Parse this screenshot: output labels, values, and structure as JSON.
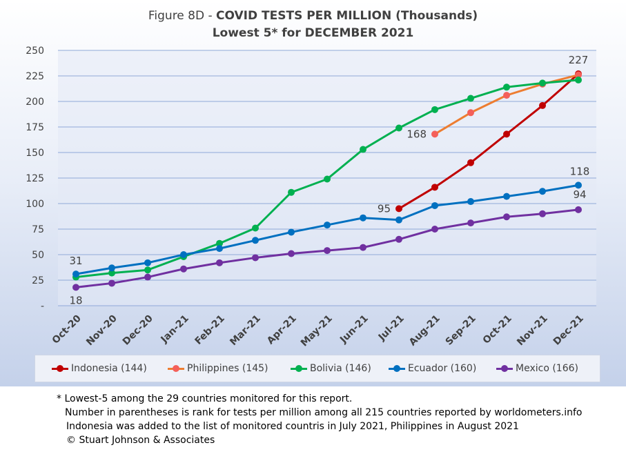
{
  "title": {
    "prefix": "Figure 8D - ",
    "main": "COVID TESTS PER MILLION (Thousands)",
    "subtitle": "Lowest 5* for DECEMBER 2021"
  },
  "chart_data": {
    "type": "line",
    "categories": [
      "Oct-20",
      "Nov-20",
      "Dec-20",
      "Jan-21",
      "Feb-21",
      "Mar-21",
      "Apr-21",
      "May-21",
      "Jun-21",
      "Jul-21",
      "Aug-21",
      "Sep-21",
      "Oct-21",
      "Nov-21",
      "Dec-21"
    ],
    "y_ticks": [
      "250",
      "225",
      "200",
      "175",
      "150",
      "125",
      "100",
      "75",
      "50",
      "25",
      "-"
    ],
    "ylim": [
      0,
      250
    ],
    "grid": true,
    "legend_position": "bottom",
    "series": [
      {
        "name": "Indonesia (144)",
        "color": "#c00000",
        "values": [
          null,
          null,
          null,
          null,
          null,
          null,
          null,
          null,
          null,
          95,
          116,
          140,
          168,
          196,
          227
        ]
      },
      {
        "name": "Philippines (145)",
        "color": "#ed7d31",
        "dot_color": "#f4605a",
        "values": [
          null,
          null,
          null,
          null,
          null,
          null,
          null,
          null,
          null,
          null,
          168,
          189,
          206,
          217,
          226
        ]
      },
      {
        "name": "Bolivia (146)",
        "color": "#00b050",
        "values": [
          28,
          32,
          35,
          48,
          61,
          76,
          111,
          124,
          153,
          174,
          192,
          203,
          214,
          218,
          221
        ]
      },
      {
        "name": "Ecuador (160)",
        "color": "#0070c0",
        "values": [
          31,
          37,
          42,
          50,
          56,
          64,
          72,
          79,
          86,
          84,
          98,
          102,
          107,
          112,
          118
        ]
      },
      {
        "name": "Mexico (166)",
        "color": "#7030a0",
        "values": [
          18,
          22,
          28,
          36,
          42,
          47,
          51,
          54,
          57,
          65,
          75,
          81,
          87,
          90,
          94
        ]
      }
    ],
    "annotations": [
      {
        "text": "227",
        "series": "Indonesia (144)",
        "category": "Dec-21"
      },
      {
        "text": "168",
        "series": "Philippines (145)",
        "category": "Aug-21"
      },
      {
        "text": "95",
        "series": "Indonesia (144)",
        "category": "Jul-21"
      },
      {
        "text": "118",
        "series": "Ecuador (160)",
        "category": "Dec-21"
      },
      {
        "text": "94",
        "series": "Mexico (166)",
        "category": "Dec-21"
      },
      {
        "text": "31",
        "series": "Ecuador (160)",
        "category": "Oct-20"
      },
      {
        "text": "18",
        "series": "Mexico (166)",
        "category": "Oct-20"
      }
    ]
  },
  "footnotes": {
    "line1": "* Lowest-5 among the 29 countries monitored for this report.",
    "line2": "Number in parentheses is rank for tests per million among all 215 countries reported by worldometers.info",
    "line3": "Indonesia was added to the list of monitored countris in July 2021, Philippines in August 2021",
    "line4": "© Stuart Johnson & Associates"
  }
}
